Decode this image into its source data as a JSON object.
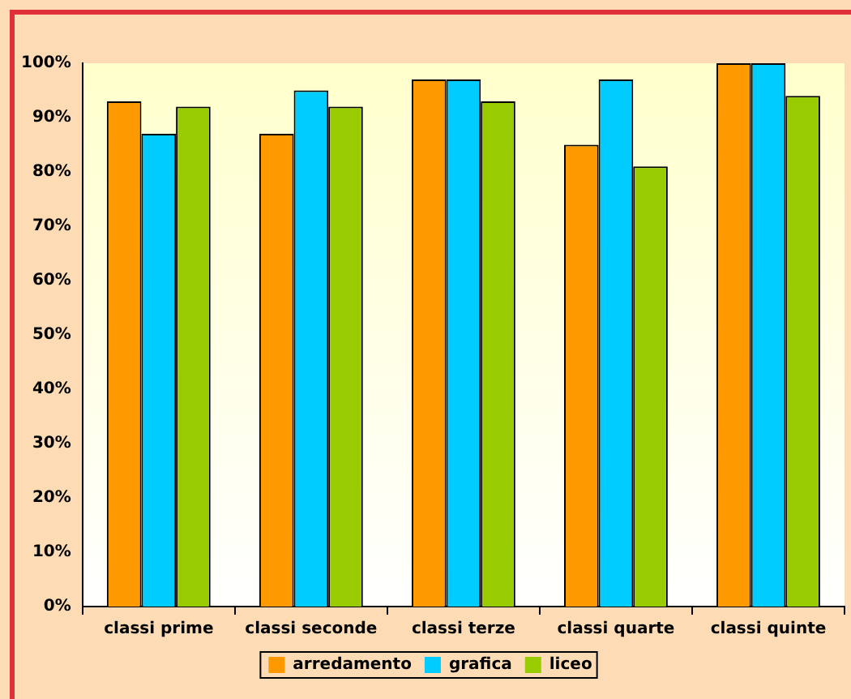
{
  "chart_data": {
    "type": "bar",
    "categories": [
      "classi prime",
      "classi seconde",
      "classi terze",
      "classi quarte",
      "classi quinte"
    ],
    "series": [
      {
        "name": "arredamento",
        "color": "#ff9900",
        "values": [
          93,
          87,
          97,
          85,
          100
        ]
      },
      {
        "name": "grafica",
        "color": "#00ccff",
        "values": [
          87,
          95,
          97,
          97,
          100
        ]
      },
      {
        "name": "liceo",
        "color": "#99cc00",
        "values": [
          92,
          92,
          93,
          81,
          94
        ]
      }
    ],
    "ylim": [
      0,
      100
    ],
    "yticks": [
      {
        "value": 0,
        "label": "0%"
      },
      {
        "value": 10,
        "label": "10%"
      },
      {
        "value": 20,
        "label": "20%"
      },
      {
        "value": 30,
        "label": "30%"
      },
      {
        "value": 40,
        "label": "40%"
      },
      {
        "value": 50,
        "label": "50%"
      },
      {
        "value": 60,
        "label": "60%"
      },
      {
        "value": 70,
        "label": "70%"
      },
      {
        "value": 80,
        "label": "80%"
      },
      {
        "value": 90,
        "label": "90%"
      },
      {
        "value": 100,
        "label": "100%"
      }
    ],
    "grid": false,
    "legend": "bottom"
  }
}
